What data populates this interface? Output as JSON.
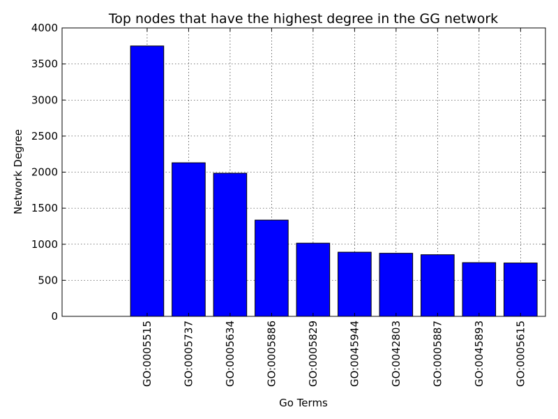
{
  "chart_data": {
    "type": "bar",
    "title": "Top nodes that have the highest degree in the GG network",
    "xlabel": "Go Terms",
    "ylabel": "Network Degree",
    "categories": [
      "GO:0005515",
      "GO:0005737",
      "GO:0005634",
      "GO:0005886",
      "GO:0005829",
      "GO:0045944",
      "GO:0042803",
      "GO:0005887",
      "GO:0045893",
      "GO:0005615"
    ],
    "values": [
      3750,
      2130,
      1985,
      1335,
      1015,
      890,
      875,
      855,
      745,
      740
    ],
    "ylim": [
      0,
      4000
    ],
    "yticks": [
      0,
      500,
      1000,
      1500,
      2000,
      2500,
      3000,
      3500,
      4000
    ],
    "xlim": [
      -1.65,
      10
    ],
    "grid": true,
    "bar_color": "#0000ff"
  }
}
